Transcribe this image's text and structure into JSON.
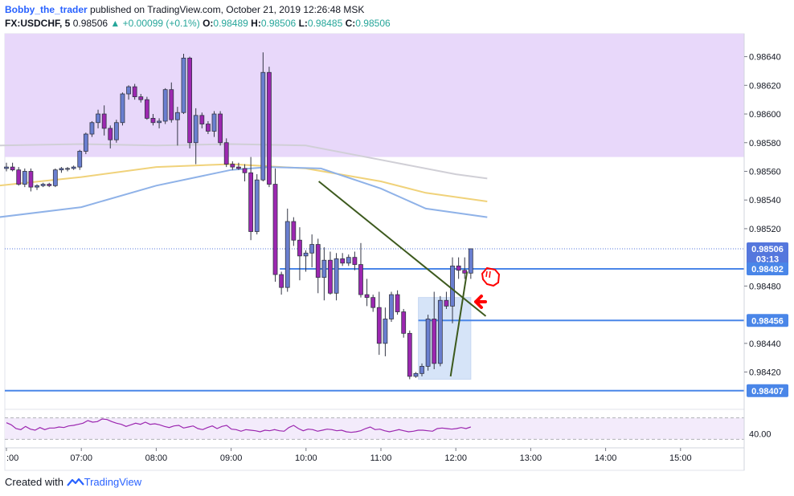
{
  "header": {
    "author": "Bobby_the_trader",
    "published": "published on TradingView.com, October 21, 2019 12:26:48 MSK",
    "symbol": "FX:USDCHF, 5",
    "last": "0.98506",
    "change": "+0.00099 (+0.1%)",
    "change_arrow": "▲",
    "o_label": "O:",
    "o_value": "0.98489",
    "h_label": "H:",
    "h_value": "0.98506",
    "l_label": "L:",
    "l_value": "0.98485",
    "c_label": "C:",
    "c_value": "0.98506"
  },
  "footer": {
    "created_with": "Created with",
    "brand": "TradingView"
  },
  "colors": {
    "bull_candle": "#6a7fd0",
    "bear_candle": "#9c27b0",
    "zone_fill": "#e8d8fa",
    "box_fill": "#d6e4f8",
    "hline": "#4a86e8",
    "trend": "#3d5a1e",
    "ma_grey": "#d0cfd6",
    "ma_yellow": "#f0d27a",
    "ma_blue": "#8fb2e8",
    "rsi_line": "#9c27b0",
    "annotation": "#ff0000"
  },
  "chart_data": {
    "type": "candlestick",
    "symbol": "FX:USDCHF",
    "interval": "5",
    "x_ticks": [
      ":00",
      "07:00",
      "08:00",
      "09:00",
      "10:00",
      "11:00",
      "12:00",
      "13:00",
      "14:00",
      "15:00"
    ],
    "y_ticks": [
      "0.98640",
      "0.98620",
      "0.98600",
      "0.98580",
      "0.98560",
      "0.98540",
      "0.98520",
      "0.98480",
      "0.98440",
      "0.98420"
    ],
    "ylim": [
      0.98394,
      0.98656
    ],
    "price_tags": [
      {
        "label": "0.98506",
        "value": 0.98506,
        "color": "#5577dd"
      },
      {
        "label": "03:13",
        "value": 0.98499,
        "color": "#5577dd"
      },
      {
        "label": "0.98492",
        "value": 0.98492,
        "color": "#4a86e8"
      },
      {
        "label": "0.98456",
        "value": 0.98456,
        "color": "#4a86e8"
      },
      {
        "label": "0.98407",
        "value": 0.98407,
        "color": "#4a86e8"
      }
    ],
    "zone": {
      "low": 0.9857,
      "high": 0.98656
    },
    "box": {
      "t0": 5.5,
      "t1": 6.2,
      "low": 0.98415,
      "high": 0.98472
    },
    "hlines": [
      {
        "value": 0.98492,
        "t0": 3.65,
        "t1": 9.9
      },
      {
        "value": 0.98456,
        "t0": 5.5,
        "t1": 9.9
      },
      {
        "value": 0.98407,
        "t0": -0.1,
        "t1": 9.9
      }
    ],
    "trendlines": [
      {
        "t0": 4.17,
        "v0": 0.98553,
        "t1": 6.4,
        "v1": 0.98459
      },
      {
        "t0": 5.93,
        "v0": 0.98417,
        "t1": 6.15,
        "v1": 0.9849
      }
    ],
    "moving_averages": [
      {
        "name": "grey",
        "points": [
          [
            -0.1,
            0.98578
          ],
          [
            1,
            0.98579
          ],
          [
            2,
            0.98578
          ],
          [
            3,
            0.98579
          ],
          [
            4,
            0.98578
          ],
          [
            5,
            0.98568
          ],
          [
            6,
            0.98558
          ],
          [
            6.42,
            0.98555
          ]
        ]
      },
      {
        "name": "yellow",
        "points": [
          [
            -0.1,
            0.9855
          ],
          [
            1,
            0.98556
          ],
          [
            2,
            0.98563
          ],
          [
            3,
            0.98565
          ],
          [
            4,
            0.98562
          ],
          [
            5,
            0.98553
          ],
          [
            5.6,
            0.98545
          ],
          [
            6.42,
            0.98539
          ]
        ]
      },
      {
        "name": "blue",
        "points": [
          [
            -0.1,
            0.98528
          ],
          [
            1,
            0.98535
          ],
          [
            2,
            0.9855
          ],
          [
            3,
            0.98561
          ],
          [
            3.5,
            0.98563
          ],
          [
            4.2,
            0.98562
          ],
          [
            5,
            0.98548
          ],
          [
            5.6,
            0.98534
          ],
          [
            6.42,
            0.98528
          ]
        ]
      }
    ],
    "candles": [
      [
        0.98562,
        0.98566,
        0.9856,
        0.98563
      ],
      [
        0.98563,
        0.98566,
        0.9856,
        0.98561
      ],
      [
        0.98561,
        0.98563,
        0.9855,
        0.98551
      ],
      [
        0.98551,
        0.98562,
        0.98549,
        0.9856
      ],
      [
        0.9856,
        0.98562,
        0.98546,
        0.98549
      ],
      [
        0.98549,
        0.98551,
        0.98547,
        0.9855
      ],
      [
        0.9855,
        0.98552,
        0.98549,
        0.98551
      ],
      [
        0.98551,
        0.98552,
        0.98549,
        0.9855
      ],
      [
        0.9855,
        0.98562,
        0.98549,
        0.98561
      ],
      [
        0.98561,
        0.98563,
        0.98559,
        0.98562
      ],
      [
        0.98562,
        0.98563,
        0.9856,
        0.98562
      ],
      [
        0.98562,
        0.98564,
        0.98561,
        0.98563
      ],
      [
        0.98563,
        0.98575,
        0.98561,
        0.98574
      ],
      [
        0.98574,
        0.98587,
        0.98572,
        0.98586
      ],
      [
        0.98586,
        0.98595,
        0.98584,
        0.98594
      ],
      [
        0.98594,
        0.98603,
        0.9859,
        0.986
      ],
      [
        0.986,
        0.98606,
        0.98585,
        0.9859
      ],
      [
        0.9859,
        0.98592,
        0.98576,
        0.98582
      ],
      [
        0.98582,
        0.98596,
        0.9858,
        0.98594
      ],
      [
        0.98594,
        0.98615,
        0.98592,
        0.98614
      ],
      [
        0.98614,
        0.9862,
        0.9861,
        0.98619
      ],
      [
        0.98619,
        0.98621,
        0.9861,
        0.98612
      ],
      [
        0.98612,
        0.98614,
        0.98608,
        0.9861
      ],
      [
        0.9861,
        0.98612,
        0.98596,
        0.98597
      ],
      [
        0.98597,
        0.986,
        0.98592,
        0.98594
      ],
      [
        0.98594,
        0.98597,
        0.9859,
        0.98595
      ],
      [
        0.98595,
        0.98618,
        0.98593,
        0.98617
      ],
      [
        0.98617,
        0.98622,
        0.98594,
        0.98596
      ],
      [
        0.98596,
        0.98605,
        0.98578,
        0.98601
      ],
      [
        0.98601,
        0.98642,
        0.986,
        0.98639
      ],
      [
        0.98639,
        0.9864,
        0.98576,
        0.9858
      ],
      [
        0.9858,
        0.98604,
        0.98565,
        0.98599
      ],
      [
        0.98599,
        0.98601,
        0.9859,
        0.98593
      ],
      [
        0.98593,
        0.98595,
        0.98586,
        0.98588
      ],
      [
        0.98588,
        0.98602,
        0.98584,
        0.986
      ],
      [
        0.986,
        0.98602,
        0.98578,
        0.9858
      ],
      [
        0.9858,
        0.98583,
        0.98563,
        0.98565
      ],
      [
        0.98565,
        0.98567,
        0.98561,
        0.98563
      ],
      [
        0.98563,
        0.98566,
        0.98561,
        0.98562
      ],
      [
        0.98562,
        0.98565,
        0.98553,
        0.98559
      ],
      [
        0.98559,
        0.9857,
        0.98512,
        0.98518
      ],
      [
        0.98518,
        0.98558,
        0.98516,
        0.98554
      ],
      [
        0.98554,
        0.98643,
        0.98553,
        0.98629
      ],
      [
        0.98629,
        0.98633,
        0.98549,
        0.98551
      ],
      [
        0.98551,
        0.98562,
        0.98483,
        0.98488
      ],
      [
        0.98488,
        0.9849,
        0.98474,
        0.98479
      ],
      [
        0.98479,
        0.98534,
        0.98476,
        0.98525
      ],
      [
        0.98525,
        0.98528,
        0.98508,
        0.98512
      ],
      [
        0.98512,
        0.98521,
        0.98484,
        0.98501
      ],
      [
        0.98501,
        0.98505,
        0.9849,
        0.98503
      ],
      [
        0.98503,
        0.98516,
        0.98493,
        0.98509
      ],
      [
        0.98509,
        0.98513,
        0.98475,
        0.98486
      ],
      [
        0.98486,
        0.98507,
        0.9847,
        0.98498
      ],
      [
        0.98498,
        0.98504,
        0.98474,
        0.98475
      ],
      [
        0.98475,
        0.98503,
        0.9847,
        0.98499
      ],
      [
        0.98499,
        0.98503,
        0.98494,
        0.98496
      ],
      [
        0.98496,
        0.98502,
        0.98494,
        0.985
      ],
      [
        0.985,
        0.98504,
        0.98491,
        0.98495
      ],
      [
        0.98495,
        0.9851,
        0.98472,
        0.98474
      ],
      [
        0.98474,
        0.98485,
        0.98466,
        0.98472
      ],
      [
        0.98472,
        0.98474,
        0.98462,
        0.98465
      ],
      [
        0.98465,
        0.98476,
        0.98432,
        0.9844
      ],
      [
        0.9844,
        0.98465,
        0.98431,
        0.98457
      ],
      [
        0.98457,
        0.98476,
        0.98455,
        0.98474
      ],
      [
        0.98474,
        0.98477,
        0.9846,
        0.98462
      ],
      [
        0.98462,
        0.98464,
        0.98444,
        0.98447
      ],
      [
        0.98447,
        0.98449,
        0.98415,
        0.98417
      ],
      [
        0.98417,
        0.9842,
        0.98416,
        0.98419
      ],
      [
        0.98419,
        0.98426,
        0.98417,
        0.98424
      ],
      [
        0.98424,
        0.9846,
        0.98421,
        0.98457
      ],
      [
        0.98457,
        0.98476,
        0.98422,
        0.98426
      ],
      [
        0.98426,
        0.98473,
        0.98424,
        0.9847
      ],
      [
        0.9847,
        0.98476,
        0.98464,
        0.98466
      ],
      [
        0.98466,
        0.985,
        0.98454,
        0.98494
      ],
      [
        0.98494,
        0.985,
        0.98485,
        0.98491
      ],
      [
        0.98491,
        0.985,
        0.98485,
        0.98489
      ],
      [
        0.98489,
        0.98506,
        0.98485,
        0.98506
      ]
    ],
    "rsi": {
      "ticks": [
        "40.00"
      ],
      "band": [
        30,
        70
      ],
      "values": [
        61,
        57,
        50,
        48,
        54,
        49,
        47,
        52,
        48,
        51,
        51,
        53,
        52,
        55,
        56,
        58,
        60,
        65,
        62,
        63,
        68,
        67,
        63,
        60,
        58,
        54,
        57,
        60,
        58,
        62,
        58,
        59,
        57,
        54,
        52,
        55,
        56,
        51,
        53,
        55,
        50,
        48,
        52,
        55,
        50,
        54,
        56,
        49,
        48,
        45,
        48,
        47,
        46,
        44,
        47,
        46,
        48,
        46,
        45,
        52,
        56,
        50,
        46,
        49,
        48,
        45,
        47,
        49,
        48,
        46,
        47,
        44,
        43,
        44,
        46,
        50,
        53,
        48,
        49,
        46,
        44,
        46,
        48,
        46,
        44,
        45,
        47,
        47,
        46,
        45,
        50,
        51,
        50,
        49,
        50,
        52,
        50,
        53
      ]
    }
  }
}
